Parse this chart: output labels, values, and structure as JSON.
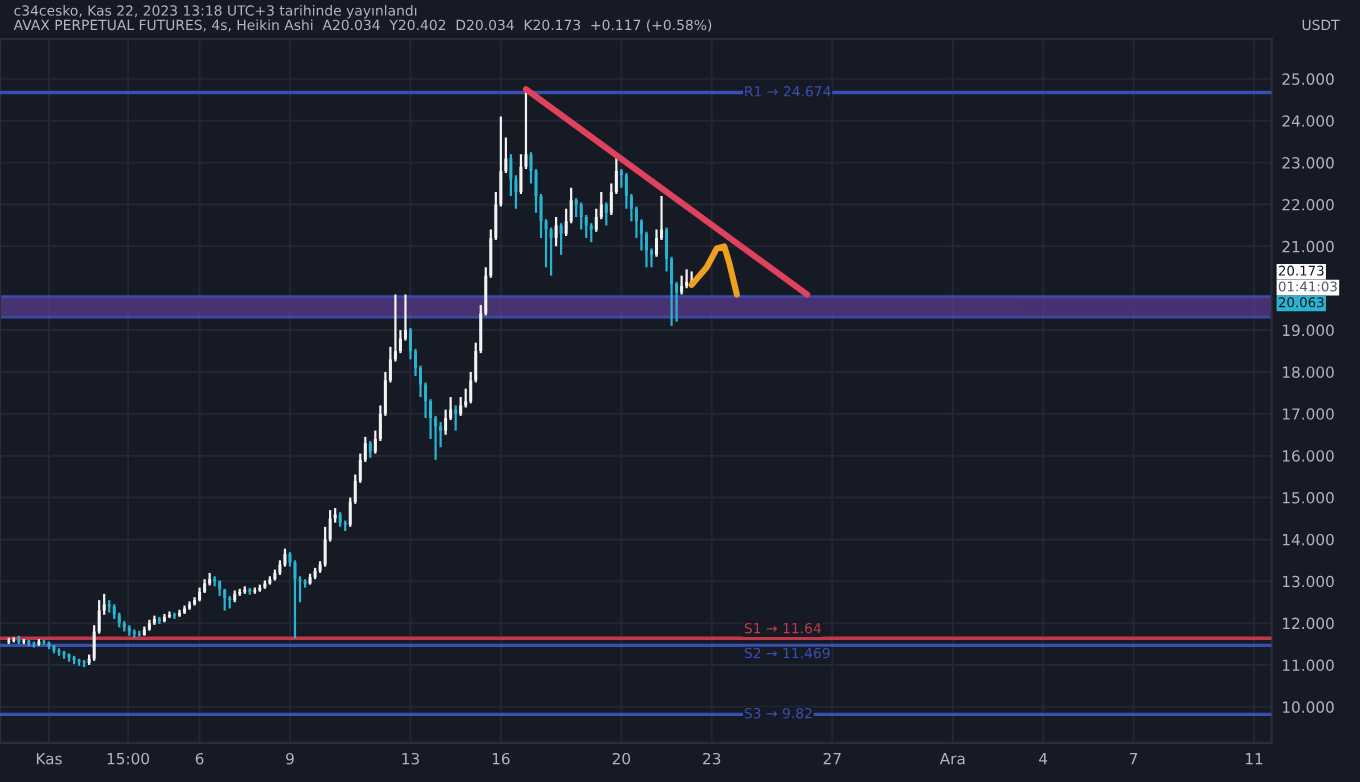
{
  "chart_data": {
    "type": "candlestick",
    "title": "AVAX PERPETUAL FUTURES, 4s, Heikin Ashi  A20.034  Y20.402  D20.034  K20.173  +0.117 (+0.58%)",
    "ylabel": "USDT",
    "annotations": [
      "c34cesko, Kas 22, 2023 13:18 UTC+3 tarihinde yayınlandı",
      "20.173",
      "01:41:03",
      "20.063"
    ],
    "x": [
      "2023-10-30T16:00",
      "2023-10-30T20:00",
      "2023-10-31T00:00",
      "2023-10-31T04:00",
      "2023-10-31T08:00",
      "2023-10-31T12:00",
      "2023-10-31T16:00",
      "2023-10-31T20:00",
      "2023-11-01T00:00",
      "2023-11-01T04:00",
      "2023-11-01T08:00",
      "2023-11-01T12:00",
      "2023-11-01T16:00",
      "2023-11-01T20:00",
      "2023-11-02T00:00",
      "2023-11-02T04:00",
      "2023-11-02T08:00",
      "2023-11-02T12:00",
      "2023-11-02T16:00",
      "2023-11-02T20:00",
      "2023-11-03T00:00",
      "2023-11-03T04:00",
      "2023-11-03T08:00",
      "2023-11-03T12:00",
      "2023-11-03T16:00",
      "2023-11-03T20:00",
      "2023-11-04T00:00",
      "2023-11-04T04:00",
      "2023-11-04T08:00",
      "2023-11-04T12:00",
      "2023-11-04T16:00",
      "2023-11-04T20:00",
      "2023-11-05T00:00",
      "2023-11-05T04:00",
      "2023-11-05T08:00",
      "2023-11-05T12:00",
      "2023-11-05T16:00",
      "2023-11-05T20:00",
      "2023-11-06T00:00",
      "2023-11-06T04:00",
      "2023-11-06T08:00",
      "2023-11-06T12:00",
      "2023-11-06T16:00",
      "2023-11-06T20:00",
      "2023-11-07T00:00",
      "2023-11-07T04:00",
      "2023-11-07T08:00",
      "2023-11-07T12:00",
      "2023-11-07T16:00",
      "2023-11-07T20:00",
      "2023-11-08T00:00",
      "2023-11-08T04:00",
      "2023-11-08T08:00",
      "2023-11-08T12:00",
      "2023-11-08T16:00",
      "2023-11-08T20:00",
      "2023-11-09T00:00",
      "2023-11-09T04:00",
      "2023-11-09T08:00",
      "2023-11-09T12:00",
      "2023-11-09T16:00",
      "2023-11-09T20:00",
      "2023-11-10T00:00",
      "2023-11-10T04:00",
      "2023-11-10T08:00",
      "2023-11-10T12:00",
      "2023-11-10T16:00",
      "2023-11-10T20:00",
      "2023-11-11T00:00",
      "2023-11-11T04:00",
      "2023-11-11T08:00",
      "2023-11-11T12:00",
      "2023-11-11T16:00",
      "2023-11-11T20:00",
      "2023-11-12T00:00",
      "2023-11-12T04:00",
      "2023-11-12T08:00",
      "2023-11-12T12:00",
      "2023-11-12T16:00",
      "2023-11-12T20:00",
      "2023-11-13T00:00",
      "2023-11-13T04:00",
      "2023-11-13T08:00",
      "2023-11-13T12:00",
      "2023-11-13T16:00",
      "2023-11-13T20:00",
      "2023-11-14T00:00",
      "2023-11-14T04:00",
      "2023-11-14T08:00",
      "2023-11-14T12:00",
      "2023-11-14T16:00",
      "2023-11-14T20:00",
      "2023-11-15T00:00",
      "2023-11-15T04:00",
      "2023-11-15T08:00",
      "2023-11-15T12:00",
      "2023-11-15T16:00",
      "2023-11-15T20:00",
      "2023-11-16T00:00",
      "2023-11-16T04:00",
      "2023-11-16T08:00",
      "2023-11-16T12:00",
      "2023-11-16T16:00",
      "2023-11-16T20:00",
      "2023-11-17T00:00",
      "2023-11-17T04:00",
      "2023-11-17T08:00",
      "2023-11-17T12:00",
      "2023-11-17T16:00",
      "2023-11-17T20:00",
      "2023-11-18T00:00",
      "2023-11-18T04:00",
      "2023-11-18T08:00",
      "2023-11-18T12:00",
      "2023-11-18T16:00",
      "2023-11-18T20:00",
      "2023-11-19T00:00",
      "2023-11-19T04:00",
      "2023-11-19T08:00",
      "2023-11-19T12:00",
      "2023-11-19T16:00",
      "2023-11-19T20:00",
      "2023-11-20T00:00",
      "2023-11-20T04:00",
      "2023-11-20T08:00",
      "2023-11-20T12:00",
      "2023-11-20T16:00",
      "2023-11-20T20:00",
      "2023-11-21T00:00",
      "2023-11-21T04:00",
      "2023-11-21T08:00",
      "2023-11-21T12:00",
      "2023-11-21T16:00",
      "2023-11-21T20:00",
      "2023-11-22T00:00",
      "2023-11-22T04:00",
      "2023-11-22T08:00"
    ],
    "ohlc": [
      [
        11.55,
        11.65,
        11.5,
        11.58
      ],
      [
        11.58,
        11.66,
        11.54,
        11.6
      ],
      [
        11.6,
        11.7,
        11.5,
        11.55
      ],
      [
        11.55,
        11.62,
        11.5,
        11.58
      ],
      [
        11.58,
        11.6,
        11.45,
        11.52
      ],
      [
        11.52,
        11.56,
        11.42,
        11.5
      ],
      [
        11.5,
        11.62,
        11.46,
        11.56
      ],
      [
        11.56,
        11.6,
        11.48,
        11.54
      ],
      [
        11.54,
        11.56,
        11.38,
        11.45
      ],
      [
        11.45,
        11.48,
        11.28,
        11.35
      ],
      [
        11.35,
        11.4,
        11.22,
        11.3
      ],
      [
        11.3,
        11.34,
        11.15,
        11.25
      ],
      [
        11.25,
        11.28,
        11.08,
        11.18
      ],
      [
        11.18,
        11.22,
        11.02,
        11.12
      ],
      [
        11.12,
        11.15,
        10.98,
        11.08
      ],
      [
        11.08,
        11.12,
        10.95,
        11.05
      ],
      [
        11.05,
        11.25,
        11.0,
        11.15
      ],
      [
        11.15,
        11.95,
        11.1,
        11.8
      ],
      [
        11.8,
        12.55,
        11.75,
        12.3
      ],
      [
        12.3,
        12.7,
        12.2,
        12.45
      ],
      [
        12.45,
        12.55,
        12.25,
        12.4
      ],
      [
        12.4,
        12.45,
        12.1,
        12.2
      ],
      [
        12.2,
        12.25,
        11.9,
        12.0
      ],
      [
        12.0,
        12.05,
        11.8,
        11.9
      ],
      [
        11.9,
        11.95,
        11.7,
        11.8
      ],
      [
        11.8,
        11.85,
        11.65,
        11.75
      ],
      [
        11.75,
        11.82,
        11.68,
        11.72
      ],
      [
        11.72,
        11.92,
        11.7,
        11.85
      ],
      [
        11.85,
        12.08,
        11.82,
        12.0
      ],
      [
        12.0,
        12.18,
        11.96,
        12.1
      ],
      [
        12.1,
        12.15,
        11.98,
        12.05
      ],
      [
        12.05,
        12.22,
        12.02,
        12.15
      ],
      [
        12.15,
        12.28,
        12.12,
        12.2
      ],
      [
        12.2,
        12.25,
        12.1,
        12.18
      ],
      [
        12.18,
        12.32,
        12.15,
        12.25
      ],
      [
        12.25,
        12.42,
        12.22,
        12.35
      ],
      [
        12.35,
        12.52,
        12.32,
        12.45
      ],
      [
        12.45,
        12.62,
        12.42,
        12.55
      ],
      [
        12.55,
        12.85,
        12.52,
        12.75
      ],
      [
        12.75,
        13.05,
        12.72,
        12.95
      ],
      [
        12.95,
        13.2,
        12.9,
        13.05
      ],
      [
        13.05,
        13.12,
        12.88,
        13.0
      ],
      [
        13.0,
        13.02,
        12.65,
        12.8
      ],
      [
        12.8,
        12.82,
        12.3,
        12.6
      ],
      [
        12.6,
        12.65,
        12.35,
        12.55
      ],
      [
        12.55,
        12.78,
        12.5,
        12.7
      ],
      [
        12.7,
        12.82,
        12.65,
        12.75
      ],
      [
        12.75,
        12.88,
        12.7,
        12.8
      ],
      [
        12.8,
        12.84,
        12.68,
        12.75
      ],
      [
        12.75,
        12.85,
        12.7,
        12.78
      ],
      [
        12.78,
        12.92,
        12.75,
        12.85
      ],
      [
        12.85,
        13.02,
        12.82,
        12.95
      ],
      [
        12.95,
        13.12,
        12.92,
        13.05
      ],
      [
        13.05,
        13.28,
        13.02,
        13.2
      ],
      [
        13.2,
        13.5,
        13.15,
        13.4
      ],
      [
        13.4,
        13.78,
        13.35,
        13.65
      ],
      [
        13.65,
        13.7,
        13.35,
        13.45
      ],
      [
        13.45,
        13.5,
        11.64,
        13.05
      ],
      [
        13.05,
        13.12,
        12.5,
        13.0
      ],
      [
        13.0,
        13.05,
        12.85,
        12.95
      ],
      [
        12.95,
        13.18,
        12.92,
        13.1
      ],
      [
        13.1,
        13.32,
        13.05,
        13.25
      ],
      [
        13.25,
        13.48,
        13.2,
        13.4
      ],
      [
        13.4,
        14.3,
        13.35,
        14.0
      ],
      [
        14.0,
        14.7,
        13.95,
        14.5
      ],
      [
        14.5,
        14.75,
        14.4,
        14.6
      ],
      [
        14.6,
        14.65,
        14.3,
        14.4
      ],
      [
        14.4,
        14.45,
        14.2,
        14.35
      ],
      [
        14.35,
        15.0,
        14.3,
        14.9
      ],
      [
        14.9,
        15.55,
        14.85,
        15.4
      ],
      [
        15.4,
        16.05,
        15.35,
        15.9
      ],
      [
        15.9,
        16.45,
        15.85,
        16.3
      ],
      [
        16.3,
        16.35,
        15.95,
        16.1
      ],
      [
        16.1,
        16.6,
        16.05,
        16.4
      ],
      [
        16.4,
        17.2,
        16.35,
        17.0
      ],
      [
        17.0,
        18.0,
        16.95,
        17.8
      ],
      [
        17.8,
        18.6,
        17.75,
        18.3
      ],
      [
        18.3,
        19.85,
        18.25,
        18.5
      ],
      [
        18.5,
        19.0,
        18.45,
        18.8
      ],
      [
        18.8,
        19.85,
        18.75,
        19.0
      ],
      [
        19.0,
        19.05,
        18.3,
        18.5
      ],
      [
        18.5,
        18.55,
        17.9,
        18.1
      ],
      [
        18.1,
        18.15,
        17.4,
        17.7
      ],
      [
        17.7,
        17.75,
        16.9,
        17.3
      ],
      [
        17.3,
        17.35,
        16.4,
        16.9
      ],
      [
        16.9,
        16.95,
        15.9,
        16.7
      ],
      [
        16.7,
        16.8,
        16.2,
        16.6
      ],
      [
        16.6,
        17.1,
        16.5,
        16.9
      ],
      [
        16.9,
        17.4,
        16.85,
        17.1
      ],
      [
        17.1,
        17.2,
        16.6,
        17.0
      ],
      [
        17.0,
        17.4,
        16.95,
        17.2
      ],
      [
        17.2,
        17.6,
        17.15,
        17.3
      ],
      [
        17.3,
        18.0,
        17.25,
        17.8
      ],
      [
        17.8,
        18.7,
        17.75,
        18.5
      ],
      [
        18.5,
        19.6,
        18.45,
        19.4
      ],
      [
        19.4,
        20.5,
        19.35,
        20.3
      ],
      [
        20.3,
        21.4,
        20.25,
        21.2
      ],
      [
        21.2,
        22.3,
        21.15,
        22.0
      ],
      [
        22.0,
        24.1,
        21.95,
        22.8
      ],
      [
        22.8,
        23.6,
        22.75,
        23.1
      ],
      [
        23.1,
        23.2,
        22.2,
        22.6
      ],
      [
        22.6,
        22.7,
        21.9,
        22.3
      ],
      [
        22.3,
        23.2,
        22.25,
        22.9
      ],
      [
        22.9,
        24.674,
        22.85,
        23.2
      ],
      [
        23.2,
        23.25,
        22.5,
        22.8
      ],
      [
        22.8,
        22.85,
        21.8,
        22.2
      ],
      [
        22.2,
        22.25,
        21.2,
        21.6
      ],
      [
        21.6,
        21.65,
        20.5,
        21.4
      ],
      [
        21.4,
        21.45,
        20.3,
        21.2
      ],
      [
        21.2,
        21.7,
        21.0,
        21.5
      ],
      [
        21.5,
        21.55,
        20.8,
        21.3
      ],
      [
        21.3,
        21.9,
        21.25,
        21.6
      ],
      [
        21.6,
        22.4,
        21.55,
        22.1
      ],
      [
        22.1,
        22.15,
        21.7,
        22.0
      ],
      [
        22.0,
        22.05,
        21.4,
        21.7
      ],
      [
        21.7,
        21.75,
        21.2,
        21.5
      ],
      [
        21.5,
        21.55,
        21.1,
        21.4
      ],
      [
        21.4,
        21.9,
        21.35,
        21.7
      ],
      [
        21.7,
        22.3,
        21.65,
        22.0
      ],
      [
        22.0,
        22.05,
        21.5,
        21.8
      ],
      [
        21.8,
        22.5,
        21.75,
        22.3
      ],
      [
        22.3,
        23.2,
        22.25,
        22.8
      ],
      [
        22.8,
        22.85,
        22.4,
        22.7
      ],
      [
        22.7,
        22.75,
        21.9,
        22.2
      ],
      [
        22.2,
        22.25,
        21.6,
        21.9
      ],
      [
        21.9,
        21.95,
        21.2,
        21.6
      ],
      [
        21.6,
        21.65,
        20.9,
        21.3
      ],
      [
        21.3,
        21.35,
        20.5,
        20.9
      ],
      [
        20.9,
        20.95,
        20.5,
        20.8
      ],
      [
        20.8,
        21.4,
        20.75,
        21.2
      ],
      [
        21.2,
        22.2,
        21.15,
        21.4
      ],
      [
        21.4,
        21.45,
        20.4,
        20.7
      ],
      [
        20.7,
        20.75,
        19.1,
        20.1
      ],
      [
        20.1,
        20.15,
        19.2,
        19.9
      ],
      [
        19.9,
        20.3,
        19.85,
        20.05
      ],
      [
        20.05,
        20.45,
        20.0,
        20.15
      ],
      [
        20.034,
        20.402,
        20.034,
        20.173
      ]
    ],
    "series": [
      {
        "type": "line",
        "color": "#e0415c",
        "x": [
          "2023-11-16T20:00",
          "2023-11-26T04:00"
        ],
        "values": [
          24.75,
          19.85
        ]
      },
      {
        "type": "line",
        "color": "#f0a020",
        "x": [
          "2023-11-22T08:00",
          "2023-11-22T20:00",
          "2023-11-23T04:00",
          "2023-11-23T10:00",
          "2023-11-23T14:00",
          "2023-11-23T20:00"
        ],
        "values": [
          20.08,
          20.5,
          20.95,
          21.0,
          20.6,
          19.85
        ]
      }
    ],
    "ref_lines": [
      {
        "axis": "y",
        "value": 24.674,
        "label": "R1 → 24.674",
        "color": "#3a4fb0"
      },
      {
        "axis": "y",
        "value": 11.64,
        "label": "S1 → 11.64",
        "color": "#c0394a"
      },
      {
        "axis": "y",
        "value": 11.469,
        "label": "S2 → 11.469",
        "color": "#3a4fb0"
      },
      {
        "axis": "y",
        "value": 9.82,
        "label": "S3 → 9.82",
        "color": "#3a4fb0"
      }
    ],
    "bands": [
      {
        "axis": "y",
        "from": 19.31,
        "to": 19.8,
        "color": "#5a3a8c"
      }
    ],
    "xlim": [
      "2023-10-30T09:00",
      "2023-12-11T14:00"
    ],
    "xticks": [
      {
        "value": "2023-11-01",
        "label": "Kas"
      },
      {
        "value": "2023-11-03T15:00",
        "label": "15:00"
      },
      {
        "value": "2023-11-06",
        "label": "6"
      },
      {
        "value": "2023-11-09",
        "label": "9"
      },
      {
        "value": "2023-11-13",
        "label": "13"
      },
      {
        "value": "2023-11-16",
        "label": "16"
      },
      {
        "value": "2023-11-20",
        "label": "20"
      },
      {
        "value": "2023-11-23",
        "label": "23"
      },
      {
        "value": "2023-11-27",
        "label": "27"
      },
      {
        "value": "2023-12-01",
        "label": "Ara"
      },
      {
        "value": "2023-12-04",
        "label": "4"
      },
      {
        "value": "2023-12-07",
        "label": "7"
      },
      {
        "value": "2023-12-11",
        "label": "11"
      }
    ],
    "ylim": [
      9.14,
      25.95
    ],
    "yticks": [
      {
        "value": 10,
        "label": "10.000"
      },
      {
        "value": 11,
        "label": "11.000"
      },
      {
        "value": 12,
        "label": "12.000"
      },
      {
        "value": 13,
        "label": "13.000"
      },
      {
        "value": 14,
        "label": "14.000"
      },
      {
        "value": 15,
        "label": "15.000"
      },
      {
        "value": 16,
        "label": "16.000"
      },
      {
        "value": 17,
        "label": "17.000"
      },
      {
        "value": 18,
        "label": "18.000"
      },
      {
        "value": 19,
        "label": "19.000"
      },
      {
        "value": 21,
        "label": "21.000"
      },
      {
        "value": 22,
        "label": "22.000"
      },
      {
        "value": 23,
        "label": "23.000"
      },
      {
        "value": 24,
        "label": "24.000"
      },
      {
        "value": 25,
        "label": "25.000"
      }
    ],
    "grid": true
  }
}
